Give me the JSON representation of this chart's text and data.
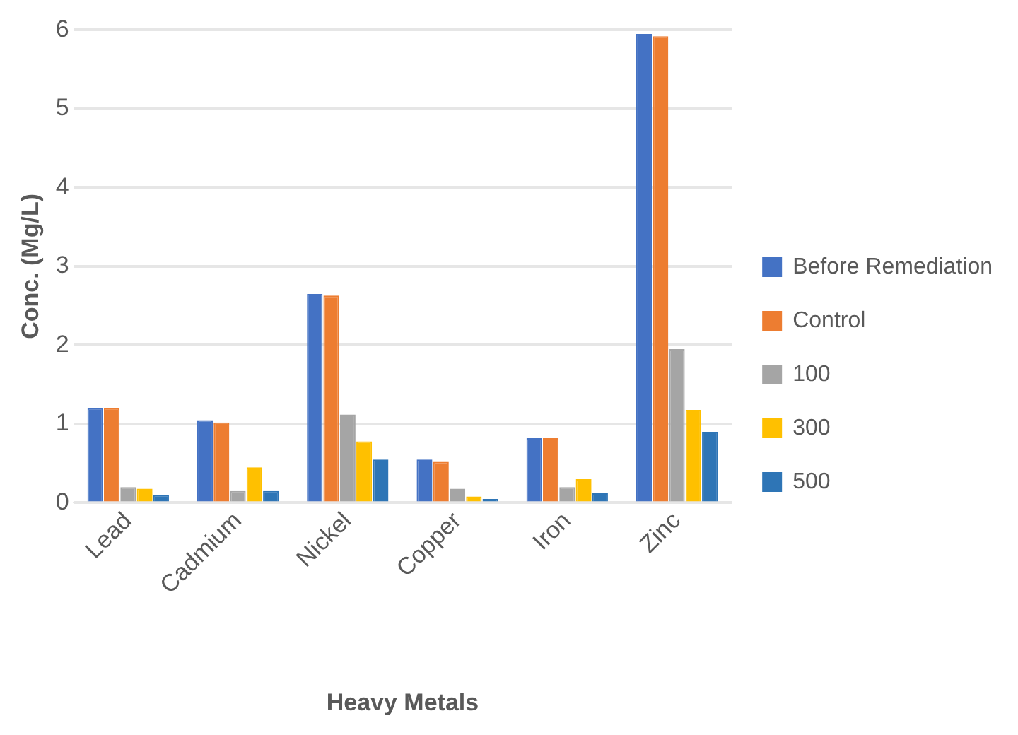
{
  "chart_data": {
    "type": "bar",
    "xlabel": "Heavy Metals",
    "ylabel": "Conc. (Mg/L)",
    "categories": [
      "Lead",
      "Cadmium",
      "Nickel",
      "Copper",
      "Iron",
      "Zinc"
    ],
    "series": [
      {
        "name": "Before Remediation",
        "color": "#4472c4",
        "values": [
          1.2,
          1.05,
          2.65,
          0.55,
          0.82,
          5.95
        ]
      },
      {
        "name": "Control",
        "color": "#ed7d31",
        "values": [
          1.2,
          1.02,
          2.63,
          0.52,
          0.82,
          5.92
        ]
      },
      {
        "name": "100",
        "color": "#a5a5a5",
        "values": [
          0.2,
          0.15,
          1.12,
          0.18,
          0.2,
          1.95
        ]
      },
      {
        "name": "300",
        "color": "#ffc000",
        "values": [
          0.18,
          0.45,
          0.78,
          0.08,
          0.3,
          1.18
        ]
      },
      {
        "name": "500",
        "color": "#2e75b6",
        "values": [
          0.1,
          0.15,
          0.55,
          0.05,
          0.12,
          0.9
        ]
      }
    ],
    "ylim": [
      0,
      6
    ],
    "yticks": [
      0,
      1,
      2,
      3,
      4,
      5,
      6
    ],
    "grid": "y",
    "legend": "right"
  }
}
